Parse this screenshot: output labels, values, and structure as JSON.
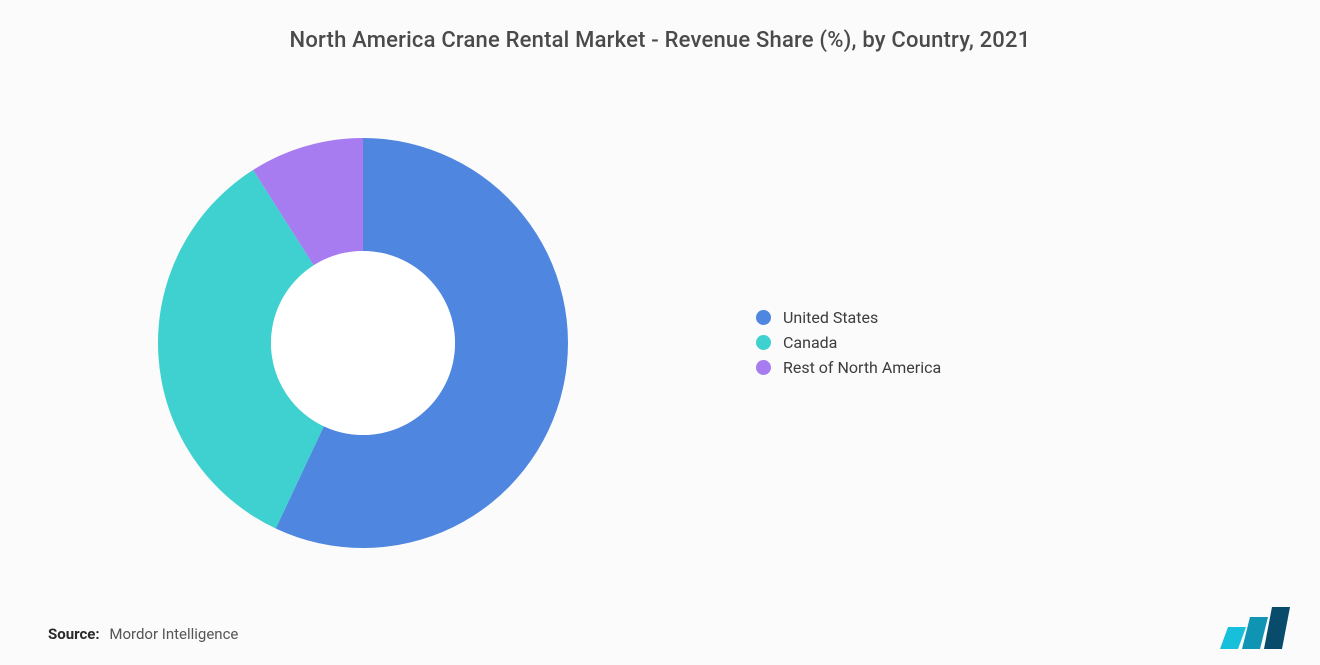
{
  "chart": {
    "type": "donut",
    "title": "North America Crane Rental Market - Revenue Share (%), by Country, 2021",
    "title_fontsize": 22,
    "title_color": "#4a4a4a",
    "background_color": "#fbfbfb",
    "donut": {
      "outer_radius": 205,
      "inner_radius": 92,
      "center_fill": "#ffffff",
      "start_angle_deg": -90
    },
    "series": [
      {
        "label": "United States",
        "value": 57,
        "color": "#4f86e0"
      },
      {
        "label": "Canada",
        "value": 34,
        "color": "#3fd1cf"
      },
      {
        "label": "Rest of North America",
        "value": 9,
        "color": "#a77cf0"
      }
    ],
    "legend": {
      "position": "right",
      "fontsize": 16,
      "text_color": "#3d3d3d",
      "swatch_shape": "circle",
      "swatch_size": 15
    }
  },
  "source": {
    "label": "Source:",
    "text": "Mordor Intelligence"
  },
  "brand": {
    "name": "Mordor Intelligence logo",
    "bar_colors": [
      "#16c0db",
      "#0f95b3",
      "#084b6b"
    ]
  }
}
